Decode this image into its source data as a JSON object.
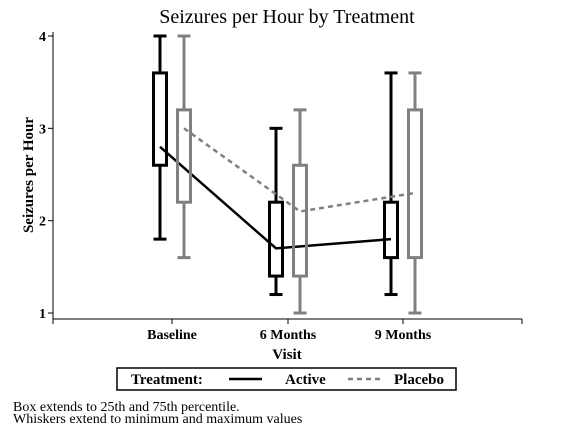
{
  "chart_data": {
    "type": "box",
    "title": "Seizures per Hour by Treatment",
    "xlabel": "Visit",
    "ylabel": "Seizures per Hour",
    "categories": [
      "Baseline",
      "6 Months",
      "9 Months"
    ],
    "ylim": [
      1,
      4
    ],
    "yticks": [
      "1",
      "2",
      "3",
      "4"
    ],
    "grid": false,
    "legend": {
      "position": "bottom",
      "title": "Treatment:"
    },
    "series": [
      {
        "name": "Active",
        "color": "#000000",
        "line_style": "solid",
        "boxes": [
          {
            "min": 1.8,
            "q1": 2.6,
            "q3": 3.6,
            "max": 4.0
          },
          {
            "min": 1.2,
            "q1": 1.4,
            "q3": 2.2,
            "max": 3.0
          },
          {
            "min": 1.2,
            "q1": 1.6,
            "q3": 2.2,
            "max": 3.6
          }
        ],
        "line_values": [
          2.8,
          1.7,
          1.8
        ]
      },
      {
        "name": "Placebo",
        "color": "#808080",
        "line_style": "dashed",
        "boxes": [
          {
            "min": 1.6,
            "q1": 2.2,
            "q3": 3.2,
            "max": 4.0
          },
          {
            "min": 1.0,
            "q1": 1.4,
            "q3": 2.6,
            "max": 3.2
          },
          {
            "min": 1.0,
            "q1": 1.6,
            "q3": 3.2,
            "max": 3.6
          }
        ],
        "line_values": [
          3.0,
          2.1,
          2.3
        ]
      }
    ]
  },
  "footnotes": [
    "Box extends to 25th and 75th percentile.",
    "Whiskers extend to minimum and maximum values"
  ]
}
